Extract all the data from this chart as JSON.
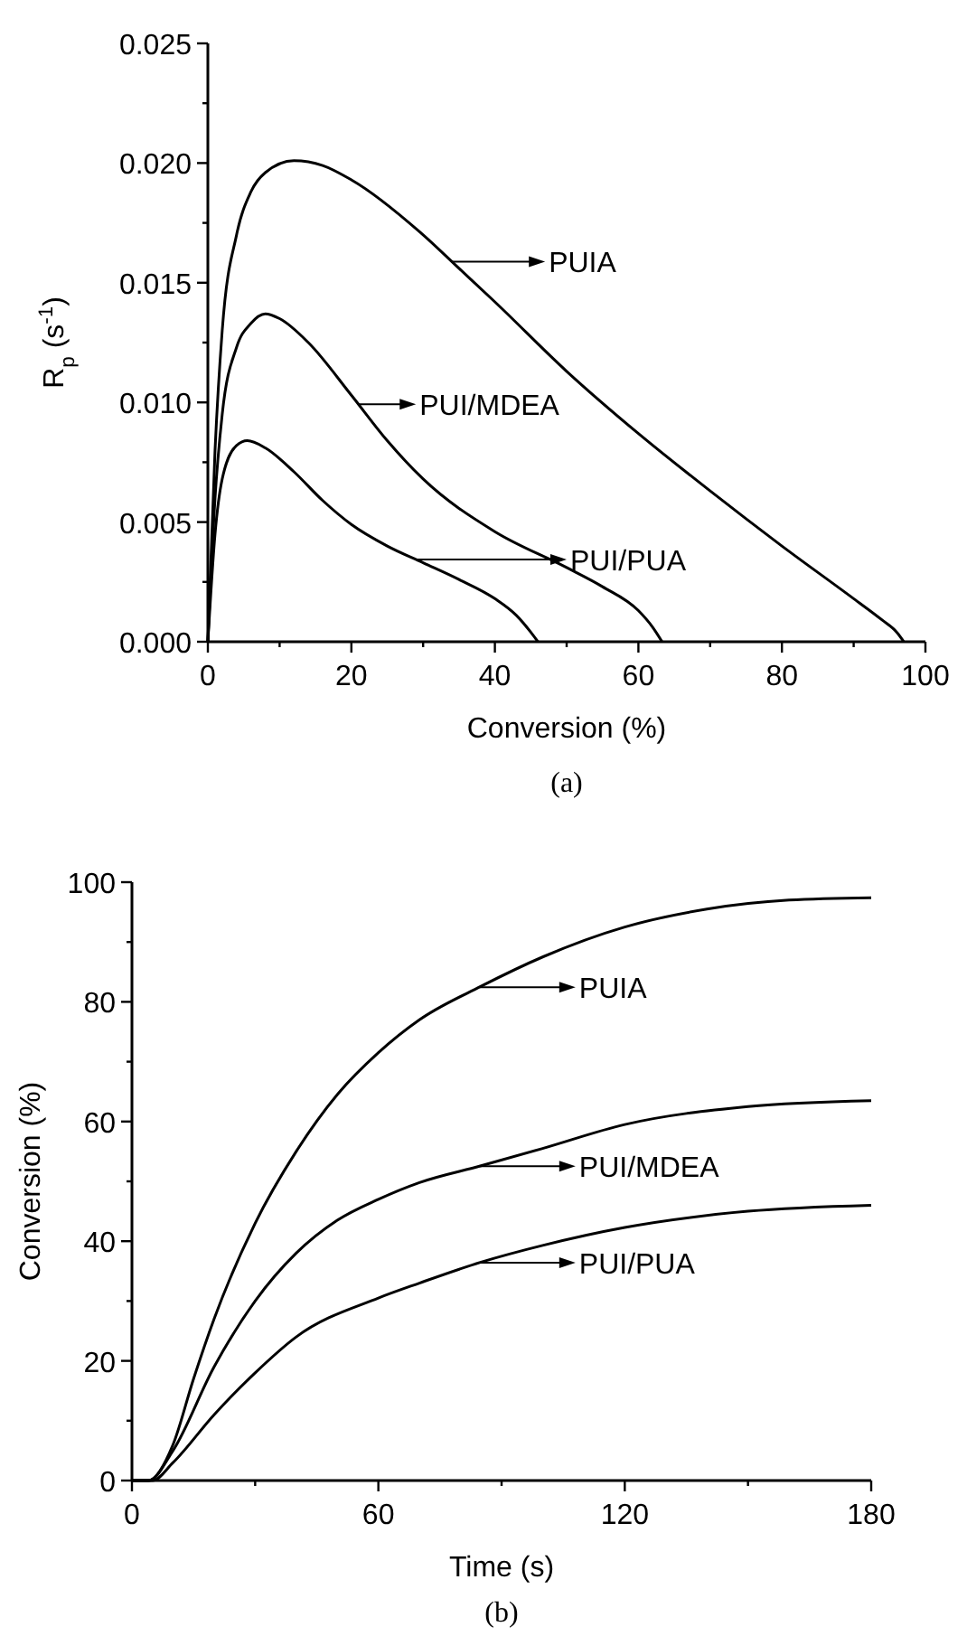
{
  "chart_data": [
    {
      "type": "line",
      "xlabel": "Conversion (%)",
      "ylabel": "R$_{p}$ (s$^{-1}$)",
      "annotations": [
        "(a)"
      ],
      "xlim": [
        0,
        100
      ],
      "ylim": [
        0,
        0.025
      ],
      "xticks": [
        0,
        {
          "value": 10,
          "label": null
        },
        20,
        {
          "value": 30,
          "label": null
        },
        40,
        {
          "value": 50,
          "label": null
        },
        60,
        {
          "value": 70,
          "label": null
        },
        80,
        {
          "value": 90,
          "label": null
        },
        100
      ],
      "yticks": [
        {
          "value": 0,
          "label": "0.000"
        },
        {
          "value": 0.0025,
          "label": null
        },
        0.005,
        {
          "value": 0.0075,
          "label": null
        },
        {
          "value": 0.01,
          "label": "0.010"
        },
        {
          "value": 0.0125,
          "label": null
        },
        0.015,
        {
          "value": 0.0175,
          "label": null
        },
        {
          "value": 0.02,
          "label": "0.020"
        },
        {
          "value": 0.0225,
          "label": null
        },
        0.025
      ],
      "grid": false,
      "legend": "center",
      "marker": "none",
      "line_style": "solid",
      "series": [
        {
          "name": "PUIA",
          "color": "#000000",
          "x": [
            0,
            1,
            2,
            4,
            6,
            8,
            12,
            16,
            20,
            30,
            35,
            40,
            50,
            60,
            70,
            80,
            90,
            94,
            96,
            97
          ],
          "values": [
            0,
            0.008,
            0.013,
            0.017,
            0.0188,
            0.0196,
            0.0201,
            0.0199,
            0.0193,
            0.017,
            0.0156,
            0.0142,
            0.0113,
            0.0087,
            0.0063,
            0.004,
            0.0018,
            0.0009,
            0.0004,
            0
          ]
        },
        {
          "name": "PUI/MDEA",
          "color": "#000000",
          "x": [
            0,
            1,
            2,
            4,
            6,
            8,
            10,
            14,
            20,
            25,
            30,
            40,
            50,
            55,
            60,
            62,
            63.3
          ],
          "values": [
            0,
            0.006,
            0.0095,
            0.0123,
            0.0133,
            0.0137,
            0.0135,
            0.0125,
            0.0103,
            0.0084,
            0.0068,
            0.0046,
            0.0031,
            0.0023,
            0.0013,
            0.0006,
            0
          ]
        },
        {
          "name": "PUI/PUA",
          "color": "#000000",
          "x": [
            0,
            1,
            2,
            4,
            5.5,
            8,
            12,
            16,
            20,
            25,
            30,
            35,
            40,
            43,
            45,
            46
          ],
          "values": [
            0,
            0.0045,
            0.0068,
            0.0082,
            0.0084,
            0.0081,
            0.0071,
            0.0059,
            0.0049,
            0.004,
            0.0033,
            0.0026,
            0.0018,
            0.0011,
            0.0004,
            0
          ]
        }
      ]
    },
    {
      "type": "line",
      "xlabel": "Time (s)",
      "ylabel": "Conversion (%)",
      "annotations": [
        "(b)"
      ],
      "xlim": [
        0,
        180
      ],
      "ylim": [
        0,
        100
      ],
      "xticks": [
        0,
        {
          "value": 30,
          "label": null
        },
        60,
        {
          "value": 90,
          "label": null
        },
        120,
        {
          "value": 150,
          "label": null
        },
        180
      ],
      "yticks": [
        0,
        {
          "value": 10,
          "label": null
        },
        20,
        {
          "value": 30,
          "label": null
        },
        40,
        {
          "value": 50,
          "label": null
        },
        60,
        {
          "value": 70,
          "label": null
        },
        80,
        {
          "value": 90,
          "label": null
        },
        100
      ],
      "grid": false,
      "legend": "right",
      "marker": "none",
      "line_style": "solid",
      "series": [
        {
          "name": "PUIA",
          "color": "#000000",
          "x": [
            0,
            4,
            10,
            15,
            20,
            30,
            40,
            50,
            60,
            70,
            85,
            100,
            120,
            140,
            160,
            180
          ],
          "values": [
            0,
            0,
            6,
            17,
            27,
            43,
            55,
            64.5,
            71.5,
            77,
            82.6,
            87.5,
            92.5,
            95.5,
            97,
            97.4
          ]
        },
        {
          "name": "PUI/MDEA",
          "color": "#000000",
          "x": [
            0,
            4,
            10,
            20,
            30,
            40,
            50,
            60,
            70,
            85,
            100,
            120,
            150,
            180
          ],
          "values": [
            0,
            0,
            5,
            19,
            30,
            38,
            43.5,
            47,
            49.8,
            52.6,
            55.5,
            59.5,
            62.5,
            63.5
          ]
        },
        {
          "name": "PUI/PUA",
          "color": "#000000",
          "x": [
            0,
            5,
            10,
            20,
            30,
            40,
            60,
            70,
            85,
            100,
            120,
            150,
            180
          ],
          "values": [
            0,
            0,
            3,
            11,
            18,
            24,
            30.5,
            33,
            36.5,
            39.3,
            42.3,
            45,
            46
          ]
        }
      ]
    }
  ]
}
